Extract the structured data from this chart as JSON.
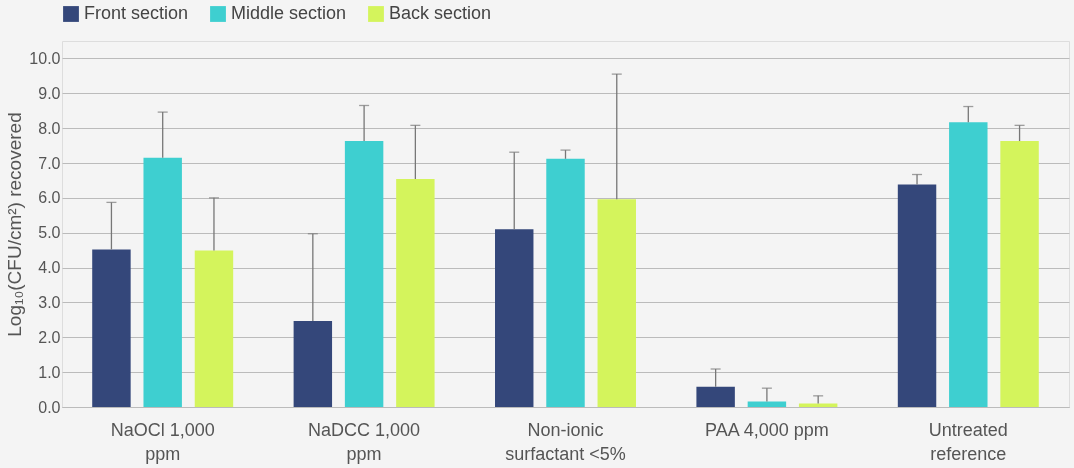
{
  "chart_data": {
    "type": "bar",
    "ylabel": "Log₁₀(CFU/cm²) recovered",
    "categories": [
      "NaOCl 1,000 ppm",
      "NaDCC 1,000 ppm",
      "Non-ionic surfactant <5%",
      "PAA 4,000 ppm",
      "Untreated reference"
    ],
    "series": [
      {
        "name": "Front section",
        "color": "#34477a",
        "values": [
          4.52,
          2.47,
          5.1,
          0.58,
          6.38
        ],
        "errors": [
          [
            4.52,
            5.87
          ],
          [
            2.47,
            4.97
          ],
          [
            5.1,
            7.31
          ],
          [
            0.58,
            1.09
          ],
          [
            6.38,
            6.67
          ]
        ]
      },
      {
        "name": "Middle section",
        "color": "#3ecfd0",
        "values": [
          7.15,
          7.63,
          7.12,
          0.16,
          8.17
        ],
        "errors": [
          [
            7.15,
            8.46
          ],
          [
            7.63,
            8.65
          ],
          [
            7.12,
            7.37
          ],
          [
            0.16,
            0.54
          ],
          [
            8.17,
            8.62
          ]
        ]
      },
      {
        "name": "Back section",
        "color": "#d4f45c",
        "values": [
          4.49,
          6.54,
          5.96,
          0.1,
          7.63
        ],
        "errors": [
          [
            4.49,
            6.0
          ],
          [
            6.54,
            8.08
          ],
          [
            5.96,
            9.55
          ],
          [
            0.1,
            0.32
          ],
          [
            7.63,
            8.08
          ]
        ]
      }
    ],
    "ylim": [
      0,
      10.5
    ],
    "yticks": [
      {
        "value": 0,
        "label": "0.0"
      },
      {
        "value": 1,
        "label": "1.0"
      },
      {
        "value": 2,
        "label": "2.0"
      },
      {
        "value": 3,
        "label": "3.0"
      },
      {
        "value": 4,
        "label": "4.0"
      },
      {
        "value": 5,
        "label": "5.0"
      },
      {
        "value": 6,
        "label": "6.0"
      },
      {
        "value": 7,
        "label": "7.0"
      },
      {
        "value": 8,
        "label": "8.0"
      },
      {
        "value": 9,
        "label": "9.0"
      },
      {
        "value": 10,
        "label": "10.0"
      }
    ],
    "grid": "y",
    "legend": "top"
  }
}
